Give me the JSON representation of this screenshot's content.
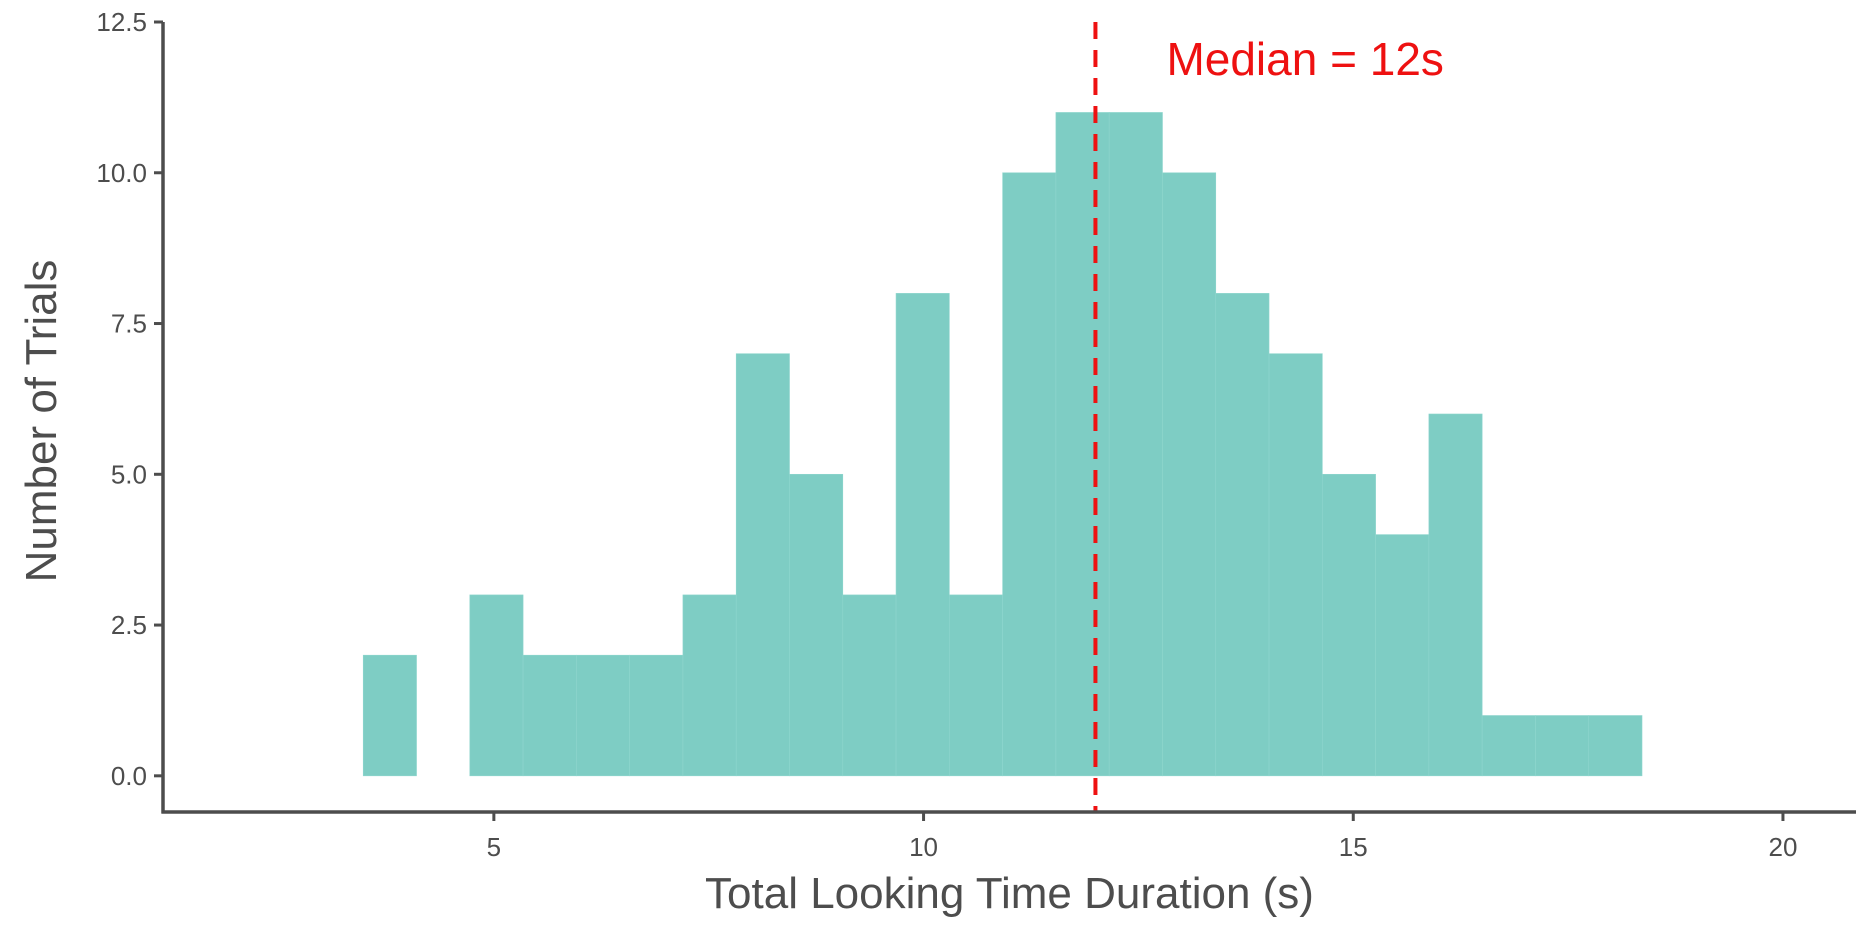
{
  "chart_data": {
    "type": "bar",
    "title": "",
    "xlabel": "Total Looking Time Duration (s)",
    "ylabel": "Number of Trials",
    "xlim": [
      1.15,
      20.85
    ],
    "ylim": [
      -0.6,
      12.5
    ],
    "xticks": [
      5,
      10,
      15,
      20
    ],
    "xtick_labels": [
      "5",
      "10",
      "15",
      "20"
    ],
    "yticks": [
      0,
      2.5,
      5,
      7.5,
      10,
      12.5
    ],
    "ytick_labels": [
      "0.0",
      "2.5",
      "5.0",
      "7.5",
      "10.0",
      "12.5"
    ],
    "bin_width": 0.62,
    "bins": [
      {
        "start": 3.48,
        "count": 2
      },
      {
        "start": 4.1,
        "count": 0
      },
      {
        "start": 4.72,
        "count": 3
      },
      {
        "start": 5.34,
        "count": 2
      },
      {
        "start": 5.96,
        "count": 2
      },
      {
        "start": 6.58,
        "count": 2
      },
      {
        "start": 7.2,
        "count": 3
      },
      {
        "start": 7.82,
        "count": 7
      },
      {
        "start": 8.44,
        "count": 5
      },
      {
        "start": 9.06,
        "count": 3
      },
      {
        "start": 9.68,
        "count": 8
      },
      {
        "start": 10.3,
        "count": 3
      },
      {
        "start": 10.92,
        "count": 10
      },
      {
        "start": 11.54,
        "count": 11
      },
      {
        "start": 12.16,
        "count": 11
      },
      {
        "start": 12.78,
        "count": 10
      },
      {
        "start": 13.4,
        "count": 8
      },
      {
        "start": 14.02,
        "count": 7
      },
      {
        "start": 14.64,
        "count": 5
      },
      {
        "start": 15.26,
        "count": 4
      },
      {
        "start": 15.88,
        "count": 6
      },
      {
        "start": 16.5,
        "count": 1
      },
      {
        "start": 17.12,
        "count": 1
      },
      {
        "start": 17.74,
        "count": 1
      }
    ],
    "median": 12,
    "median_label": "Median = 12s",
    "bar_color": "#7ECDC4",
    "median_color": "#EE1111",
    "axis_color": "#4d4d4d",
    "grid": false,
    "legend": "none"
  }
}
